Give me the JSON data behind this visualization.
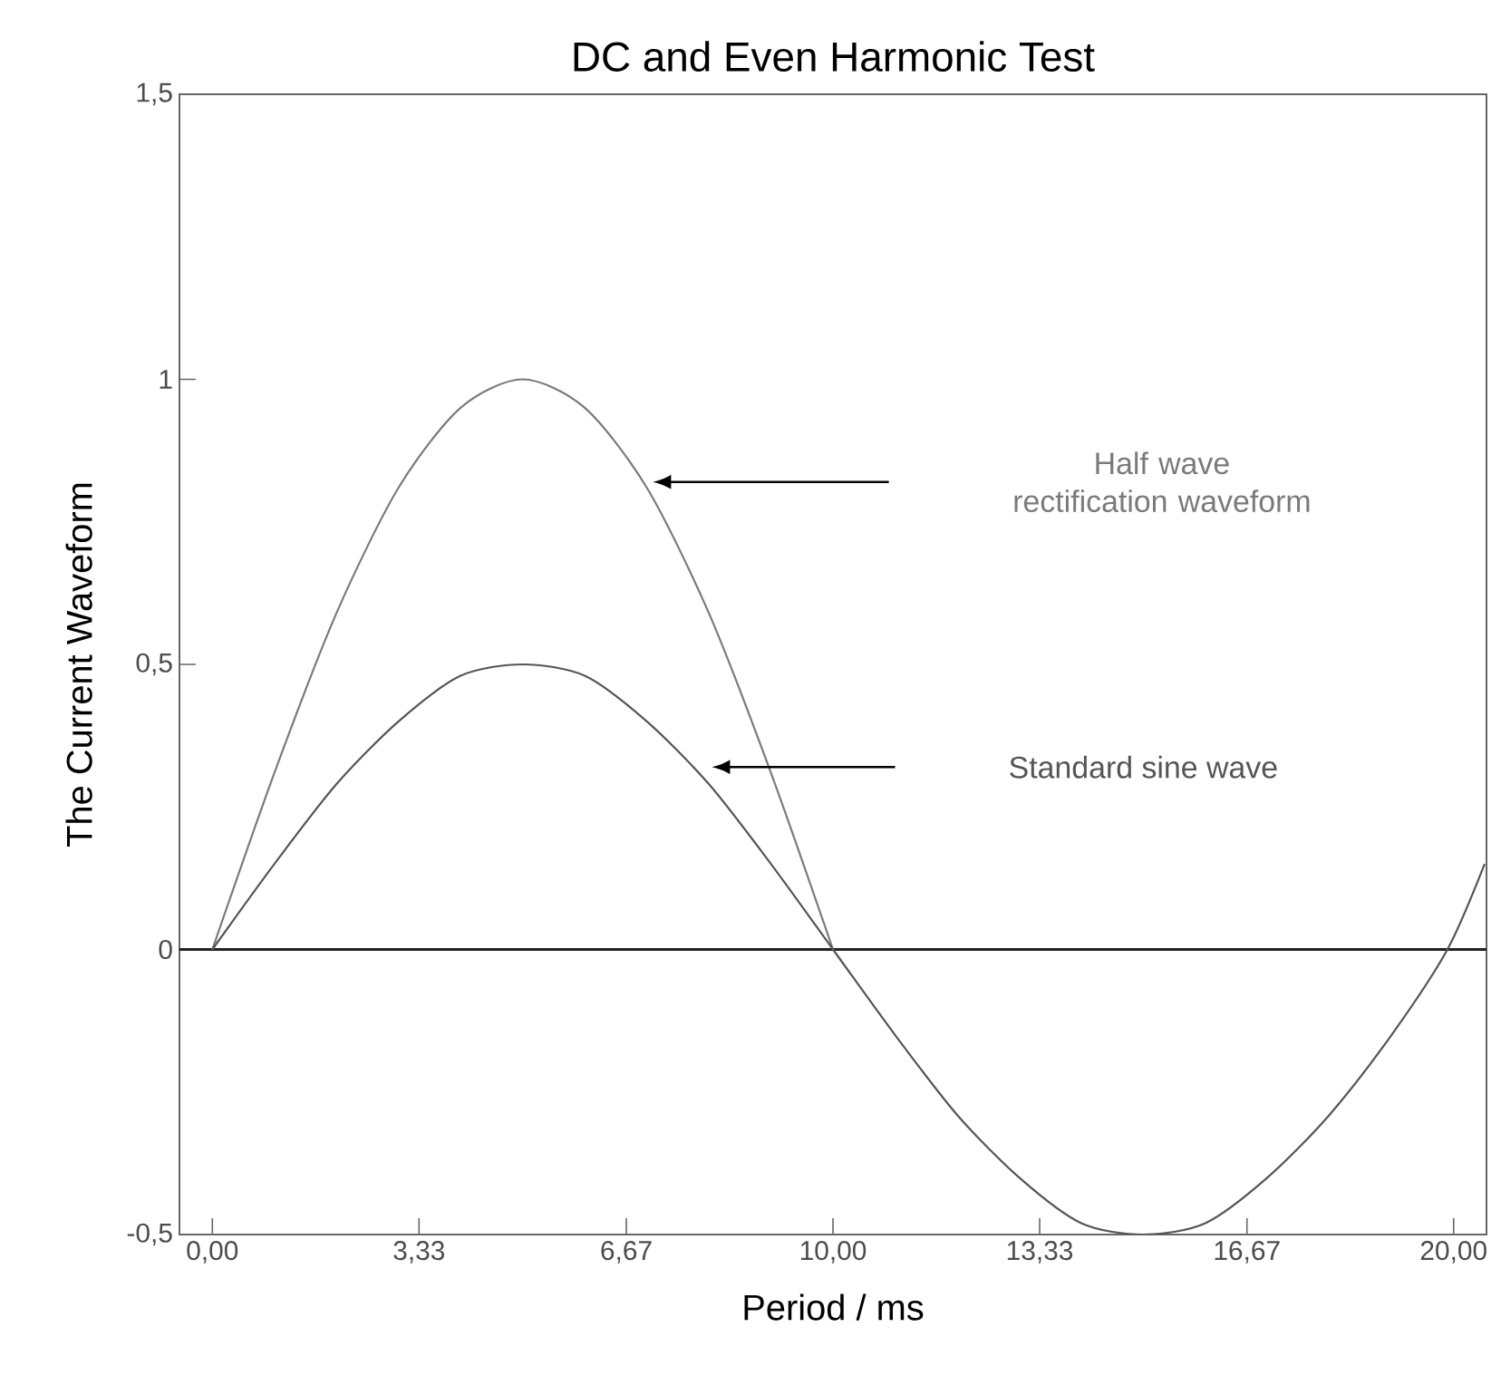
{
  "chart_data": {
    "type": "line",
    "title": "DC and Even Harmonic Test",
    "xlabel": "Period / ms",
    "ylabel": "The Current Waveform",
    "xlim": [
      -0.53,
      20.53
    ],
    "ylim": [
      -0.5,
      1.5
    ],
    "xticks": [
      {
        "value": 0,
        "label": "0,00"
      },
      {
        "value": 3.33,
        "label": "3,33"
      },
      {
        "value": 6.67,
        "label": "6,67"
      },
      {
        "value": 10,
        "label": "10,00"
      },
      {
        "value": 13.33,
        "label": "13,33"
      },
      {
        "value": 16.67,
        "label": "16,67"
      },
      {
        "value": 20,
        "label": "20,00"
      }
    ],
    "yticks": [
      {
        "value": -0.5,
        "label": "-0,5"
      },
      0,
      {
        "value": 0.5,
        "label": "0,5"
      },
      1,
      {
        "value": 1.5,
        "label": "1,5"
      }
    ],
    "grid": false,
    "legend": false,
    "marker": "none",
    "line_style": "solid",
    "ref_lines": [
      {
        "axis": "y",
        "value": 0,
        "color": "#222222"
      }
    ],
    "series": [
      {
        "name": "Half wave rectification waveform",
        "color": "#7a7a7a",
        "x": [
          0,
          1,
          2,
          3,
          4,
          5,
          6,
          7,
          8,
          9,
          10
        ],
        "values": [
          0,
          0.31,
          0.59,
          0.81,
          0.95,
          1,
          0.95,
          0.81,
          0.59,
          0.31,
          0
        ]
      },
      {
        "name": "Standard sine wave",
        "color": "#555555",
        "x": [
          0,
          1,
          2,
          3,
          4,
          5,
          6,
          7,
          8,
          9,
          10,
          11,
          12,
          13,
          14,
          15,
          16,
          17,
          18,
          19,
          19.9,
          20.5
        ],
        "values": [
          0,
          0.15,
          0.29,
          0.4,
          0.48,
          0.5,
          0.48,
          0.4,
          0.29,
          0.15,
          0,
          -0.15,
          -0.29,
          -0.4,
          -0.48,
          -0.5,
          -0.48,
          -0.4,
          -0.29,
          -0.15,
          0,
          0.15
        ]
      }
    ]
  }
}
